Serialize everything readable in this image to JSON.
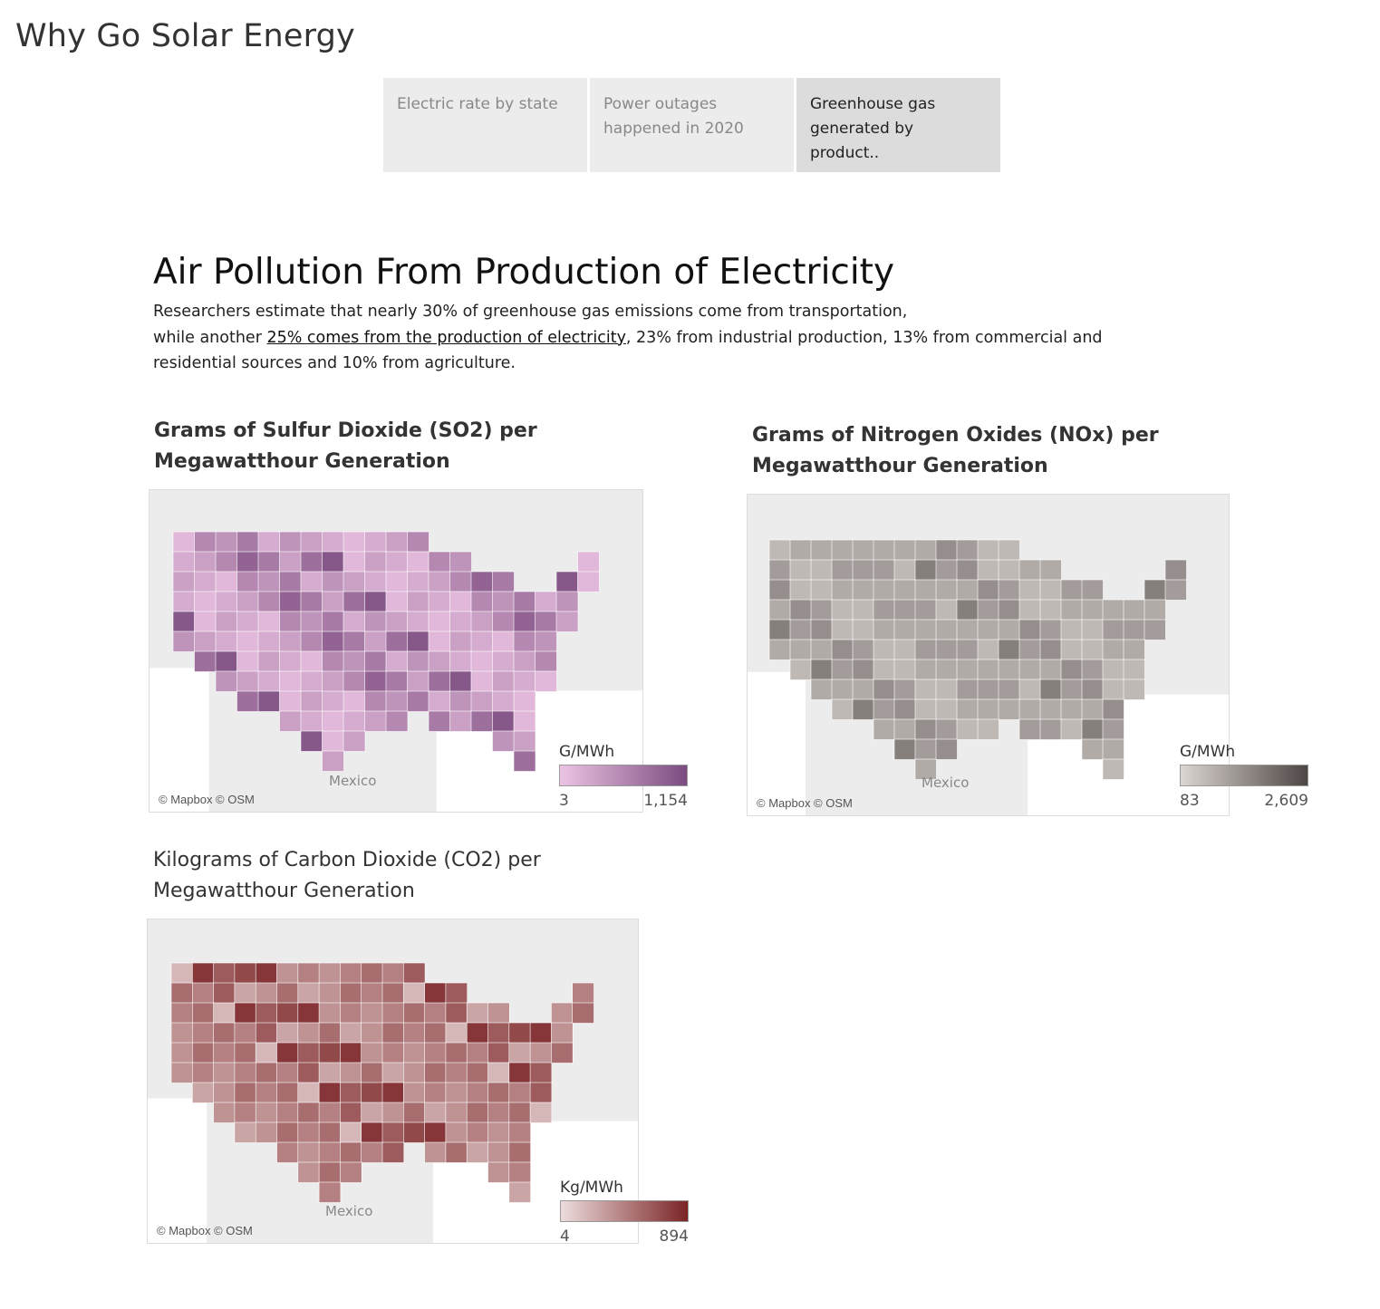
{
  "app": {
    "title": "Why Go Solar Energy"
  },
  "tabs": [
    {
      "label_line1": "Electric rate by state",
      "label_line2": ""
    },
    {
      "label_line1": "Power outages",
      "label_line2": "happened in 2020"
    },
    {
      "label_line1": "Greenhouse gas",
      "label_line2": "generated by product.."
    }
  ],
  "article": {
    "headline": "Air Pollution From Production of Electricity",
    "intro_line1": "Researchers estimate that nearly 30% of greenhouse gas emissions come from transportation,",
    "intro_line2_pre": "while another ",
    "intro_link": "25% comes from the production of electricity",
    "intro_line2_post": ", 23% from industrial production, 13% from commercial and",
    "intro_line3": "residential sources and 10% from agriculture."
  },
  "maps": {
    "so2": {
      "title_line1": "Grams of Sulfur Dioxide (SO2) per",
      "title_line2": "Megawatthour Generation",
      "legend_title": "G/MWh",
      "legend_min": "3",
      "legend_max": "1,154",
      "color_low": "#ecc4e3",
      "color_high": "#7b4b7f",
      "credit": "© Mapbox © OSM",
      "mexico_label": "Mexico"
    },
    "nox": {
      "title_line1": "Grams of Nitrogen Oxides (NOx) per",
      "title_line2": "Megawatthour Generation",
      "legend_title": "G/MWh",
      "legend_min": "83",
      "legend_max": "2,609",
      "color_low": "#dcd6d3",
      "color_high": "#4d4644",
      "credit": "© Mapbox © OSM",
      "mexico_label": "Mexico"
    },
    "co2": {
      "title_line1": "Kilograms of Carbon Dioxide (CO2) per",
      "title_line2": "Megawatthour Generation",
      "legend_title": "Kg/MWh",
      "legend_min": "4",
      "legend_max": "894",
      "color_low": "#ecdcdc",
      "color_high": "#7b2426",
      "credit": "© Mapbox © OSM",
      "mexico_label": "Mexico"
    }
  }
}
